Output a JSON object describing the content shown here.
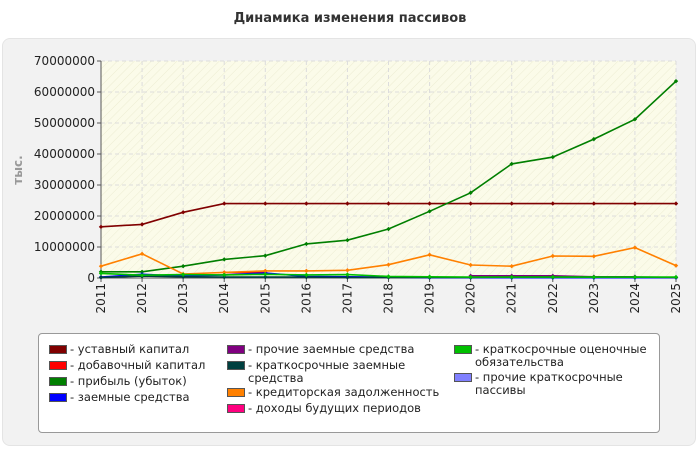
{
  "chart_data": {
    "type": "line",
    "title": "Динамика изменения пассивов",
    "ylabel": "тыс.",
    "xlabel": "",
    "x": [
      "2011",
      "2012",
      "2013",
      "2014",
      "2015",
      "2016",
      "2017",
      "2018",
      "2019",
      "2020",
      "2021",
      "2022",
      "2023",
      "2024",
      "2025"
    ],
    "ylim": [
      0,
      70000000
    ],
    "yticks": [
      "0",
      "10000000",
      "20000000",
      "30000000",
      "40000000",
      "50000000",
      "60000000",
      "70000000"
    ],
    "grid": true,
    "legend_position": "bottom",
    "series": [
      {
        "name": "- уставный капитал",
        "color": "#800000",
        "values": [
          16500000,
          17300000,
          21200000,
          24000000,
          24000000,
          24000000,
          24000000,
          24000000,
          24000000,
          24000000,
          24000000,
          24000000,
          24000000,
          24000000,
          24000000
        ]
      },
      {
        "name": "- добавочный капитал",
        "color": "#ff0000",
        "values": [
          null,
          null,
          null,
          1800000,
          1800000,
          null,
          null,
          null,
          null,
          null,
          null,
          null,
          null,
          null,
          null
        ]
      },
      {
        "name": "- прибыль (убыток)",
        "color": "#007f00",
        "values": [
          2000000,
          2000000,
          3800000,
          6000000,
          7200000,
          11000000,
          12200000,
          15800000,
          21500000,
          27500000,
          36800000,
          39000000,
          44800000,
          51200000,
          63500000
        ]
      },
      {
        "name": "- заемные средства",
        "color": "#0000ff",
        "values": [
          300000,
          1200000,
          600000,
          1000000,
          1600000,
          500000,
          400000,
          300000,
          100000,
          100000,
          100000,
          100000,
          100000,
          100000,
          100000
        ]
      },
      {
        "name": "- прочие заемные средства",
        "color": "#800080",
        "values": [
          null,
          null,
          null,
          null,
          null,
          null,
          null,
          null,
          null,
          700000,
          700000,
          700000,
          400000,
          400000,
          null
        ]
      },
      {
        "name": "- краткосрочные заемные средства",
        "color": "#004040",
        "values": [
          200000,
          600000,
          400000,
          300000,
          300000,
          300000,
          200000,
          200000,
          200000,
          200000,
          300000,
          300000,
          300000,
          300000,
          200000
        ]
      },
      {
        "name": "- кредиторская задолженность",
        "color": "#ff8000",
        "values": [
          3800000,
          7800000,
          1300000,
          1800000,
          2300000,
          2300000,
          2500000,
          4300000,
          7500000,
          4200000,
          3800000,
          7100000,
          7000000,
          9800000,
          4000000
        ]
      },
      {
        "name": "- доходы будущих периодов",
        "color": "#ff0080",
        "values": [
          null,
          null,
          null,
          null,
          null,
          null,
          null,
          null,
          null,
          null,
          null,
          null,
          null,
          null,
          null
        ]
      },
      {
        "name": "- краткосрочные оценочные обязательства",
        "color": "#00c000",
        "values": [
          1500000,
          900000,
          1100000,
          1000000,
          1200000,
          1000000,
          1100000,
          500000,
          400000,
          300000,
          300000,
          300000,
          300000,
          300000,
          300000
        ]
      },
      {
        "name": "- прочие краткосрочные пассивы",
        "color": "#8080ff",
        "values": [
          null,
          null,
          null,
          null,
          null,
          null,
          null,
          null,
          null,
          null,
          null,
          null,
          null,
          null,
          null
        ]
      }
    ]
  }
}
